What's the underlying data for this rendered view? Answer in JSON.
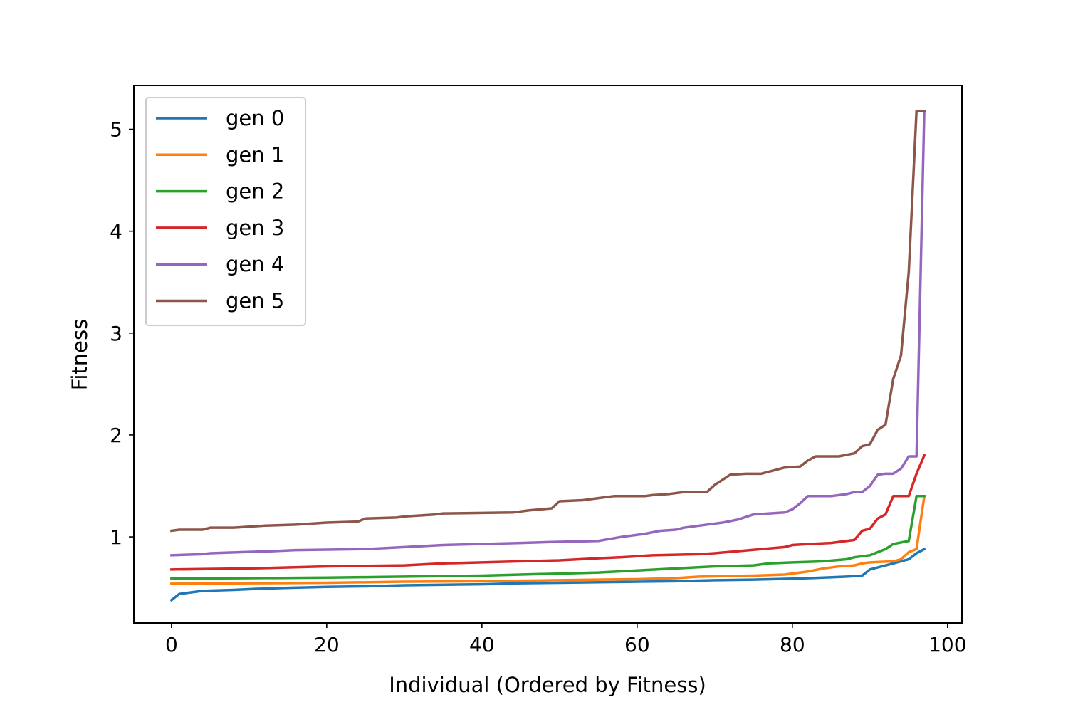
{
  "chart_data": {
    "type": "line",
    "title": "",
    "xlabel": "Individual (Ordered by Fitness)",
    "ylabel": "Fitness",
    "xlim": [
      -4.85,
      101.85
    ],
    "ylim": [
      0.155,
      5.43
    ],
    "xticks": [
      0,
      20,
      40,
      60,
      80,
      100
    ],
    "yticks": [
      1,
      2,
      3,
      4,
      5
    ],
    "grid": false,
    "legend_position": "top-left",
    "series": [
      {
        "name": "gen 0",
        "color": "#1f77b4",
        "points": [
          [
            0,
            0.38
          ],
          [
            1,
            0.44
          ],
          [
            2,
            0.45
          ],
          [
            4,
            0.47
          ],
          [
            8,
            0.48
          ],
          [
            11,
            0.49
          ],
          [
            15,
            0.5
          ],
          [
            20,
            0.51
          ],
          [
            25,
            0.515
          ],
          [
            30,
            0.525
          ],
          [
            40,
            0.535
          ],
          [
            45,
            0.545
          ],
          [
            50,
            0.55
          ],
          [
            55,
            0.555
          ],
          [
            60,
            0.56
          ],
          [
            65,
            0.565
          ],
          [
            70,
            0.575
          ],
          [
            75,
            0.58
          ],
          [
            80,
            0.59
          ],
          [
            84,
            0.6
          ],
          [
            87,
            0.61
          ],
          [
            89,
            0.62
          ],
          [
            90,
            0.68
          ],
          [
            92,
            0.72
          ],
          [
            95,
            0.78
          ],
          [
            96,
            0.84
          ],
          [
            97,
            0.88
          ]
        ]
      },
      {
        "name": "gen 1",
        "color": "#ff7f0e",
        "points": [
          [
            0,
            0.54
          ],
          [
            10,
            0.545
          ],
          [
            20,
            0.55
          ],
          [
            30,
            0.56
          ],
          [
            40,
            0.565
          ],
          [
            50,
            0.575
          ],
          [
            60,
            0.585
          ],
          [
            65,
            0.595
          ],
          [
            68,
            0.61
          ],
          [
            75,
            0.62
          ],
          [
            79,
            0.63
          ],
          [
            82,
            0.66
          ],
          [
            84,
            0.69
          ],
          [
            86,
            0.71
          ],
          [
            88,
            0.72
          ],
          [
            89,
            0.74
          ],
          [
            90,
            0.75
          ],
          [
            93,
            0.76
          ],
          [
            94,
            0.78
          ],
          [
            95,
            0.85
          ],
          [
            96,
            0.88
          ],
          [
            97,
            1.4
          ]
        ]
      },
      {
        "name": "gen 2",
        "color": "#2ca02c",
        "points": [
          [
            0,
            0.59
          ],
          [
            10,
            0.595
          ],
          [
            20,
            0.6
          ],
          [
            25,
            0.605
          ],
          [
            30,
            0.61
          ],
          [
            40,
            0.62
          ],
          [
            45,
            0.63
          ],
          [
            50,
            0.64
          ],
          [
            55,
            0.65
          ],
          [
            60,
            0.67
          ],
          [
            65,
            0.69
          ],
          [
            70,
            0.71
          ],
          [
            75,
            0.72
          ],
          [
            77,
            0.74
          ],
          [
            80,
            0.75
          ],
          [
            84,
            0.76
          ],
          [
            87,
            0.78
          ],
          [
            88,
            0.8
          ],
          [
            90,
            0.82
          ],
          [
            91,
            0.85
          ],
          [
            92,
            0.88
          ],
          [
            93,
            0.93
          ],
          [
            95,
            0.96
          ],
          [
            96,
            1.4
          ],
          [
            97,
            1.4
          ]
        ]
      },
      {
        "name": "gen 3",
        "color": "#d62728",
        "points": [
          [
            0,
            0.68
          ],
          [
            10,
            0.69
          ],
          [
            20,
            0.71
          ],
          [
            30,
            0.72
          ],
          [
            35,
            0.74
          ],
          [
            40,
            0.75
          ],
          [
            45,
            0.76
          ],
          [
            50,
            0.77
          ],
          [
            55,
            0.79
          ],
          [
            58,
            0.8
          ],
          [
            60,
            0.81
          ],
          [
            62,
            0.82
          ],
          [
            68,
            0.83
          ],
          [
            70,
            0.84
          ],
          [
            73,
            0.86
          ],
          [
            76,
            0.88
          ],
          [
            79,
            0.9
          ],
          [
            80,
            0.92
          ],
          [
            82,
            0.93
          ],
          [
            85,
            0.94
          ],
          [
            87,
            0.96
          ],
          [
            88,
            0.97
          ],
          [
            89,
            1.06
          ],
          [
            90,
            1.08
          ],
          [
            91,
            1.18
          ],
          [
            92,
            1.22
          ],
          [
            93,
            1.4
          ],
          [
            95,
            1.4
          ],
          [
            96,
            1.62
          ],
          [
            97,
            1.8
          ]
        ]
      },
      {
        "name": "gen 4",
        "color": "#9467bd",
        "points": [
          [
            0,
            0.82
          ],
          [
            4,
            0.83
          ],
          [
            5,
            0.84
          ],
          [
            9,
            0.85
          ],
          [
            13,
            0.86
          ],
          [
            16,
            0.87
          ],
          [
            20,
            0.875
          ],
          [
            25,
            0.88
          ],
          [
            30,
            0.9
          ],
          [
            35,
            0.92
          ],
          [
            45,
            0.94
          ],
          [
            49,
            0.95
          ],
          [
            55,
            0.96
          ],
          [
            58,
            1.0
          ],
          [
            61,
            1.03
          ],
          [
            63,
            1.06
          ],
          [
            65,
            1.07
          ],
          [
            66,
            1.09
          ],
          [
            68,
            1.11
          ],
          [
            71,
            1.14
          ],
          [
            73,
            1.17
          ],
          [
            75,
            1.22
          ],
          [
            79,
            1.24
          ],
          [
            80,
            1.27
          ],
          [
            81,
            1.33
          ],
          [
            82,
            1.4
          ],
          [
            85,
            1.4
          ],
          [
            87,
            1.42
          ],
          [
            88,
            1.44
          ],
          [
            89,
            1.44
          ],
          [
            90,
            1.5
          ],
          [
            91,
            1.61
          ],
          [
            92,
            1.62
          ],
          [
            93,
            1.62
          ],
          [
            94,
            1.67
          ],
          [
            95,
            1.79
          ],
          [
            96,
            1.79
          ],
          [
            97,
            5.18
          ]
        ]
      },
      {
        "name": "gen 5",
        "color": "#8c564b",
        "points": [
          [
            0,
            1.06
          ],
          [
            1,
            1.07
          ],
          [
            4,
            1.07
          ],
          [
            5,
            1.09
          ],
          [
            8,
            1.09
          ],
          [
            12,
            1.11
          ],
          [
            16,
            1.12
          ],
          [
            20,
            1.14
          ],
          [
            24,
            1.15
          ],
          [
            25,
            1.18
          ],
          [
            29,
            1.19
          ],
          [
            30,
            1.2
          ],
          [
            34,
            1.22
          ],
          [
            35,
            1.23
          ],
          [
            44,
            1.24
          ],
          [
            46,
            1.26
          ],
          [
            49,
            1.28
          ],
          [
            50,
            1.35
          ],
          [
            53,
            1.36
          ],
          [
            55,
            1.38
          ],
          [
            57,
            1.4
          ],
          [
            61,
            1.4
          ],
          [
            62,
            1.41
          ],
          [
            64,
            1.42
          ],
          [
            66,
            1.44
          ],
          [
            69,
            1.44
          ],
          [
            70,
            1.51
          ],
          [
            72,
            1.61
          ],
          [
            74,
            1.62
          ],
          [
            76,
            1.62
          ],
          [
            78,
            1.66
          ],
          [
            79,
            1.68
          ],
          [
            81,
            1.69
          ],
          [
            82,
            1.75
          ],
          [
            83,
            1.79
          ],
          [
            86,
            1.79
          ],
          [
            88,
            1.82
          ],
          [
            89,
            1.89
          ],
          [
            90,
            1.91
          ],
          [
            91,
            2.05
          ],
          [
            92,
            2.1
          ],
          [
            93,
            2.55
          ],
          [
            94,
            2.78
          ],
          [
            95,
            3.6
          ],
          [
            96,
            5.18
          ],
          [
            97,
            5.18
          ]
        ]
      }
    ]
  }
}
